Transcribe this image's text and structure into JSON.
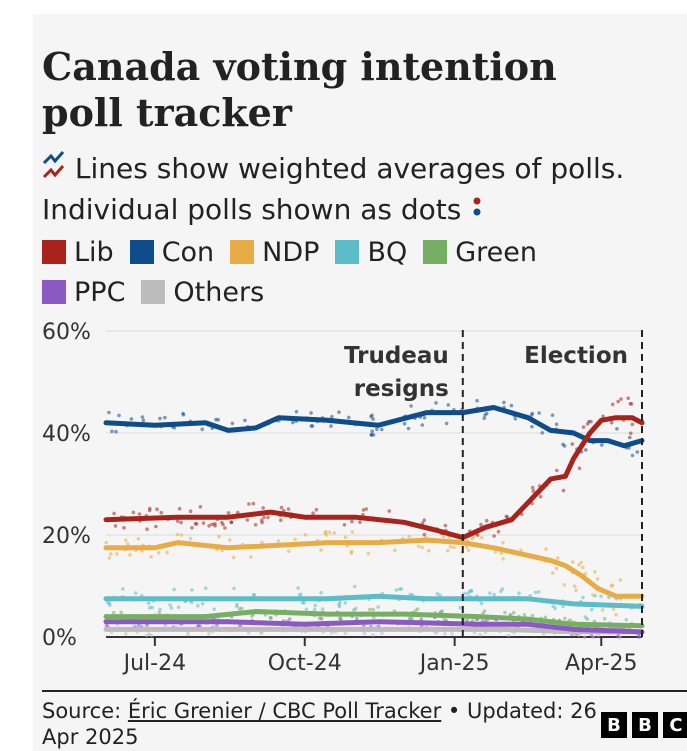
{
  "title": "Canada voting intention poll tracker",
  "subtitle": {
    "line1": "Lines show weighted averages of polls.",
    "line2": "Individual polls shown as dots",
    "lines_icon": "zigzag-lines-icon",
    "dots_icon": "two-dots-icon"
  },
  "legend": [
    {
      "name": "Lib",
      "color": "#a8231b"
    },
    {
      "name": "Con",
      "color": "#0f4c8a"
    },
    {
      "name": "NDP",
      "color": "#e8ac46"
    },
    {
      "name": "BQ",
      "color": "#5cbcc9"
    },
    {
      "name": "Green",
      "color": "#76ae64"
    },
    {
      "name": "PPC",
      "color": "#8c58c3"
    },
    {
      "name": "Others",
      "color": "#bcbcbc"
    }
  ],
  "footer": {
    "source_prefix": "Source: ",
    "source_link": "Éric Grenier / CBC Poll Tracker",
    "updated": " • Updated: 26 Apr 2025",
    "logo": [
      "B",
      "B",
      "C"
    ]
  },
  "chart_data": {
    "type": "line",
    "x_axis": {
      "start": "2024-06-01",
      "end": "2025-04-26",
      "ticks": [
        {
          "date": "2024-07-01",
          "label": "Jul-24"
        },
        {
          "date": "2024-10-01",
          "label": "Oct-24"
        },
        {
          "date": "2025-01-01",
          "label": "Jan-25"
        },
        {
          "date": "2025-04-01",
          "label": "Apr-25"
        }
      ]
    },
    "y_axis": {
      "ylim": [
        0,
        60
      ],
      "ticks": [
        {
          "value": 0,
          "label": "0%"
        },
        {
          "value": 20,
          "label": "20%"
        },
        {
          "value": 40,
          "label": "40%"
        },
        {
          "value": 60,
          "label": "60%"
        }
      ],
      "grid": true
    },
    "annotations": [
      {
        "date": "2025-01-06",
        "lines": [
          "Trudeau",
          "resigns"
        ]
      },
      {
        "date": "2025-04-26",
        "lines": [
          "Election"
        ]
      }
    ],
    "series": [
      {
        "name": "Lib",
        "color": "#a8231b",
        "points": [
          [
            "2024-06-01",
            23
          ],
          [
            "2024-07-15",
            23.5
          ],
          [
            "2024-08-15",
            23.5
          ],
          [
            "2024-09-10",
            24.5
          ],
          [
            "2024-10-01",
            23.5
          ],
          [
            "2024-11-01",
            23.5
          ],
          [
            "2024-12-01",
            22.5
          ],
          [
            "2024-12-20",
            21
          ],
          [
            "2025-01-06",
            19.5
          ],
          [
            "2025-01-20",
            21.5
          ],
          [
            "2025-02-05",
            23
          ],
          [
            "2025-02-20",
            28
          ],
          [
            "2025-03-01",
            31
          ],
          [
            "2025-03-10",
            31.5
          ],
          [
            "2025-03-15",
            35
          ],
          [
            "2025-03-25",
            40
          ],
          [
            "2025-04-01",
            42.5
          ],
          [
            "2025-04-10",
            43
          ],
          [
            "2025-04-20",
            43
          ],
          [
            "2025-04-26",
            42
          ]
        ]
      },
      {
        "name": "Con",
        "color": "#0f4c8a",
        "points": [
          [
            "2024-06-01",
            42
          ],
          [
            "2024-07-01",
            41.5
          ],
          [
            "2024-08-01",
            42
          ],
          [
            "2024-08-15",
            40.5
          ],
          [
            "2024-09-01",
            41
          ],
          [
            "2024-09-15",
            43
          ],
          [
            "2024-10-15",
            42.5
          ],
          [
            "2024-11-15",
            41.5
          ],
          [
            "2024-12-15",
            44
          ],
          [
            "2025-01-06",
            44
          ],
          [
            "2025-01-25",
            45
          ],
          [
            "2025-02-15",
            43
          ],
          [
            "2025-03-01",
            40.5
          ],
          [
            "2025-03-15",
            40
          ],
          [
            "2025-03-25",
            38.5
          ],
          [
            "2025-04-05",
            38.5
          ],
          [
            "2025-04-15",
            37.5
          ],
          [
            "2025-04-26",
            38.5
          ]
        ]
      },
      {
        "name": "NDP",
        "color": "#e8ac46",
        "points": [
          [
            "2024-06-01",
            17.5
          ],
          [
            "2024-07-01",
            17.5
          ],
          [
            "2024-07-15",
            18.5
          ],
          [
            "2024-08-15",
            17.5
          ],
          [
            "2024-09-15",
            18
          ],
          [
            "2024-10-15",
            18.5
          ],
          [
            "2024-11-15",
            18.5
          ],
          [
            "2024-12-15",
            19
          ],
          [
            "2025-01-06",
            18.5
          ],
          [
            "2025-01-25",
            17.5
          ],
          [
            "2025-02-15",
            16
          ],
          [
            "2025-03-01",
            15
          ],
          [
            "2025-03-10",
            14
          ],
          [
            "2025-03-20",
            12
          ],
          [
            "2025-03-30",
            9.5
          ],
          [
            "2025-04-10",
            8
          ],
          [
            "2025-04-26",
            8
          ]
        ]
      },
      {
        "name": "BQ",
        "color": "#5cbcc9",
        "points": [
          [
            "2024-06-01",
            7.5
          ],
          [
            "2024-08-01",
            7.5
          ],
          [
            "2024-09-15",
            7.5
          ],
          [
            "2024-10-15",
            7.5
          ],
          [
            "2024-11-15",
            8
          ],
          [
            "2024-12-15",
            7.5
          ],
          [
            "2025-01-15",
            7.5
          ],
          [
            "2025-02-15",
            7.5
          ],
          [
            "2025-03-15",
            6.5
          ],
          [
            "2025-04-26",
            6
          ]
        ]
      },
      {
        "name": "Green",
        "color": "#76ae64",
        "points": [
          [
            "2024-06-01",
            4
          ],
          [
            "2024-08-01",
            4
          ],
          [
            "2024-09-01",
            5
          ],
          [
            "2024-10-15",
            4.5
          ],
          [
            "2024-12-01",
            4.5
          ],
          [
            "2025-01-15",
            4
          ],
          [
            "2025-02-15",
            3.5
          ],
          [
            "2025-03-15",
            2.5
          ],
          [
            "2025-04-26",
            2.2
          ]
        ]
      },
      {
        "name": "PPC",
        "color": "#8c58c3",
        "points": [
          [
            "2024-06-01",
            3
          ],
          [
            "2024-08-15",
            3
          ],
          [
            "2024-10-01",
            2.5
          ],
          [
            "2024-11-15",
            3
          ],
          [
            "2025-01-15",
            2.5
          ],
          [
            "2025-02-15",
            2.5
          ],
          [
            "2025-03-15",
            1.5
          ],
          [
            "2025-04-26",
            1
          ]
        ]
      },
      {
        "name": "Others",
        "color": "#bcbcbc",
        "points": [
          [
            "2024-06-01",
            1.5
          ],
          [
            "2024-09-01",
            1.5
          ],
          [
            "2024-12-01",
            1.5
          ],
          [
            "2025-02-01",
            1.5
          ],
          [
            "2025-03-15",
            1
          ],
          [
            "2025-04-26",
            1
          ]
        ]
      }
    ]
  }
}
